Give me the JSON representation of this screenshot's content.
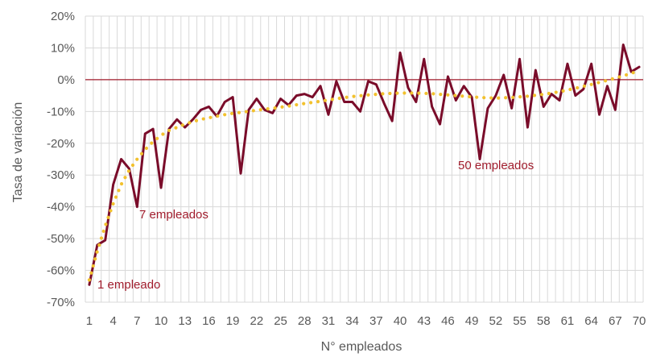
{
  "chart_data": {
    "type": "line",
    "xlabel": "N° empleados",
    "ylabel": "Tasa de variación",
    "ylim": [
      -70,
      20
    ],
    "yticks": [
      -70,
      -60,
      -50,
      -40,
      -30,
      -20,
      -10,
      0,
      10,
      20
    ],
    "ytick_labels": [
      "-70%",
      "-60%",
      "-50%",
      "-40%",
      "-30%",
      "-20%",
      "-10%",
      "0%",
      "10%",
      "20%"
    ],
    "xlim": [
      1,
      70
    ],
    "xticks": [
      1,
      4,
      7,
      10,
      13,
      16,
      19,
      22,
      25,
      28,
      31,
      34,
      37,
      40,
      43,
      46,
      49,
      52,
      55,
      58,
      61,
      64,
      67,
      70
    ],
    "grid": true,
    "colors": {
      "series": "#7a0c2a",
      "trend": "#f2c12e",
      "zero_line": "#a01c2c",
      "annotation": "#a01c2c"
    },
    "series": [
      {
        "x": [
          1,
          2,
          3,
          4,
          5,
          6,
          7,
          8,
          9,
          10,
          11,
          12,
          13,
          14,
          15,
          16,
          17,
          18,
          19,
          20,
          21,
          22,
          23,
          24,
          25,
          26,
          27,
          28,
          29,
          30,
          31,
          32,
          33,
          34,
          35,
          36,
          37,
          38,
          39,
          40,
          41,
          42,
          43,
          44,
          45,
          46,
          47,
          48,
          49,
          50,
          51,
          52,
          53,
          54,
          55,
          56,
          57,
          58,
          59,
          60,
          61,
          62,
          63,
          64,
          65,
          66,
          67,
          68,
          69,
          70
        ],
        "values": [
          -64.5,
          -52,
          -50.5,
          -33,
          -25,
          -28,
          -40,
          -17,
          -15.5,
          -34,
          -15.5,
          -12.5,
          -15,
          -12.5,
          -9.5,
          -8.5,
          -11.5,
          -7,
          -5.5,
          -29.5,
          -9.5,
          -6,
          -9.5,
          -10.5,
          -6,
          -8,
          -5,
          -4.5,
          -5.5,
          -2,
          -11,
          -0.5,
          -7,
          -7,
          -10,
          -0.5,
          -1.5,
          -7.5,
          -13,
          8.5,
          -2.5,
          -7,
          6.5,
          -8.5,
          -14,
          1,
          -6.5,
          -2,
          -5.5,
          -25,
          -9,
          -5,
          1.5,
          -9,
          6.5,
          -15,
          3,
          -8.5,
          -4.5,
          -6.5,
          5,
          -5,
          -3,
          5,
          -11,
          -2,
          -9.5,
          11,
          2.5,
          4
        ]
      }
    ],
    "trendline": {
      "style": "dotted",
      "x": [
        1,
        2,
        3,
        4,
        5,
        6,
        7,
        8,
        9,
        10,
        11,
        12,
        13,
        14,
        15,
        16,
        17,
        18,
        19,
        20,
        22,
        24,
        26,
        28,
        30,
        32,
        34,
        36,
        38,
        40,
        42,
        44,
        46,
        48,
        50,
        52,
        54,
        56,
        58,
        60,
        62,
        64,
        66,
        68,
        70
      ],
      "values": [
        -63,
        -54,
        -46,
        -39,
        -33,
        -28.5,
        -25,
        -22,
        -19.5,
        -17.5,
        -16,
        -15,
        -14,
        -13.2,
        -12.5,
        -12,
        -11.5,
        -11,
        -10.6,
        -10.3,
        -9.6,
        -9,
        -8.3,
        -7.5,
        -6.8,
        -6,
        -5.3,
        -4.8,
        -4.4,
        -4.2,
        -4.2,
        -4.4,
        -4.8,
        -5.2,
        -5.6,
        -5.8,
        -5.6,
        -5.2,
        -4.6,
        -3.8,
        -2.7,
        -1.5,
        -0.2,
        1.2,
        2.8
      ]
    },
    "annotations": [
      {
        "text": "1 empleado",
        "x": 1
      },
      {
        "text": "7 empleados",
        "x": 7
      },
      {
        "text": "50 empleados",
        "x": 50
      }
    ]
  }
}
